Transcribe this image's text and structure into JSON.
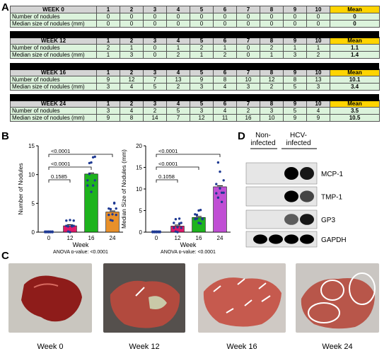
{
  "panels": {
    "a": "A",
    "b": "B",
    "c": "C",
    "d": "D"
  },
  "table": {
    "cols": [
      "1",
      "2",
      "3",
      "4",
      "5",
      "6",
      "7",
      "8",
      "9",
      "10"
    ],
    "mean_label": "Mean",
    "rows": [
      "Number of nodules",
      "Median size of nodules (mm)"
    ],
    "weeks": [
      {
        "title": "WEEK 0",
        "num": [
          "0",
          "0",
          "0",
          "0",
          "0",
          "0",
          "0",
          "0",
          "0",
          "0"
        ],
        "num_mean": "0",
        "size": [
          "0",
          "0",
          "0",
          "0",
          "0",
          "0",
          "0",
          "0",
          "0",
          "0"
        ],
        "size_mean": "0"
      },
      {
        "title": "WEEK 12",
        "num": [
          "2",
          "1",
          "0",
          "1",
          "2",
          "1",
          "0",
          "2",
          "1",
          "1"
        ],
        "num_mean": "1.1",
        "size": [
          "1",
          "3",
          "0",
          "2",
          "1",
          "2",
          "0",
          "1",
          "3",
          "2"
        ],
        "size_mean": "1.4"
      },
      {
        "title": "WEEK 16",
        "num": [
          "9",
          "12",
          "7",
          "13",
          "9",
          "8",
          "10",
          "12",
          "8",
          "13"
        ],
        "num_mean": "10.1",
        "size": [
          "3",
          "4",
          "5",
          "2",
          "3",
          "4",
          "3",
          "2",
          "5",
          "3"
        ],
        "size_mean": "3.4"
      },
      {
        "title": "WEEK 24",
        "num": [
          "3",
          "4",
          "2",
          "5",
          "3",
          "4",
          "2",
          "3",
          "5",
          "4"
        ],
        "num_mean": "3.5",
        "size": [
          "9",
          "8",
          "14",
          "7",
          "12",
          "11",
          "16",
          "10",
          "9",
          "9"
        ],
        "size_mean": "10.5"
      }
    ]
  },
  "chart_data": [
    {
      "type": "bar",
      "categories": [
        "0",
        "12",
        "16",
        "24"
      ],
      "values": [
        0,
        1.1,
        10.1,
        3.5
      ],
      "xlabel": "Week",
      "ylabel": "Number of Nodules",
      "ylim": [
        0,
        15
      ],
      "yticks": [
        "0",
        "5",
        "10",
        "15"
      ],
      "points": [
        [
          0,
          0,
          0,
          0,
          0,
          0,
          0,
          0,
          0,
          0
        ],
        [
          2,
          1,
          0,
          1,
          2,
          1,
          0,
          2,
          1,
          1
        ],
        [
          9,
          12,
          7,
          13,
          9,
          8,
          10,
          12,
          8,
          13
        ],
        [
          3,
          4,
          2,
          5,
          3,
          4,
          2,
          3,
          5,
          4
        ]
      ],
      "colors": [
        "#d62728",
        "#e0196b",
        "#1db31d",
        "#e8902a"
      ],
      "comparisons": [
        {
          "from": "0",
          "to": "12",
          "p": "0.1585"
        },
        {
          "from": "0",
          "to": "16",
          "p": "<0.0001"
        },
        {
          "from": "0",
          "to": "24",
          "p": "<0.0001"
        }
      ],
      "note": "ANOVA p-value: <0.0001"
    },
    {
      "type": "bar",
      "categories": [
        "0",
        "12",
        "16",
        "24"
      ],
      "values": [
        0,
        1.4,
        3.4,
        10.5
      ],
      "xlabel": "Week",
      "ylabel": "Median Size of Nodules (mm)",
      "ylim": [
        0,
        20
      ],
      "yticks": [
        "0",
        "5",
        "10",
        "15",
        "20"
      ],
      "points": [
        [
          0,
          0,
          0,
          0,
          0,
          0,
          0,
          0,
          0,
          0
        ],
        [
          1,
          3,
          0,
          2,
          1,
          2,
          0,
          1,
          3,
          2
        ],
        [
          3,
          4,
          5,
          2,
          3,
          4,
          3,
          2,
          5,
          3
        ],
        [
          9,
          8,
          14,
          7,
          12,
          11,
          16,
          10,
          9,
          9
        ]
      ],
      "colors": [
        "#d62728",
        "#e0196b",
        "#1db31d",
        "#c04fd4"
      ],
      "comparisons": [
        {
          "from": "0",
          "to": "12",
          "p": "0.1058"
        },
        {
          "from": "0",
          "to": "16",
          "p": "<0.0001"
        },
        {
          "from": "0",
          "to": "24",
          "p": "<0.0001"
        }
      ],
      "note": "ANOVA p-value: <0.0001"
    }
  ],
  "blot": {
    "group1": "Non-\ninfected",
    "group2": "HCV-\ninfected",
    "bands": [
      "MCP-1",
      "TMP-1",
      "GP3",
      "GAPDH"
    ]
  },
  "photos": {
    "captions": [
      "Week 0",
      "Week 12",
      "Week 16",
      "Week 24"
    ]
  }
}
